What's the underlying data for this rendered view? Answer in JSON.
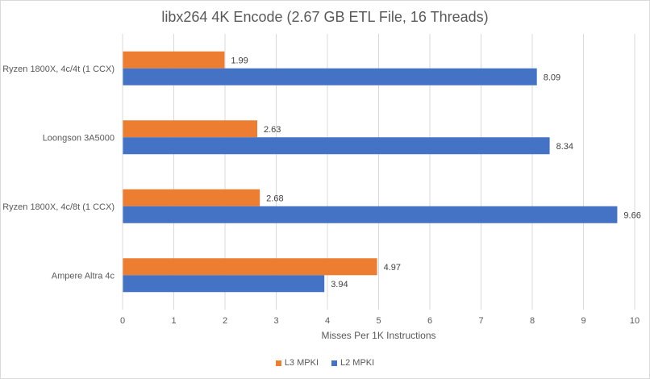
{
  "chart_data": {
    "type": "bar",
    "orientation": "horizontal",
    "title": "libx264 4K Encode (2.67 GB ETL File, 16 Threads)",
    "xlabel": "Misses Per 1K Instructions",
    "ylabel": "",
    "xlim": [
      0,
      10
    ],
    "xticks": [
      0,
      1,
      2,
      3,
      4,
      5,
      6,
      7,
      8,
      9,
      10
    ],
    "grid": true,
    "legend_position": "bottom",
    "categories": [
      "Ryzen 1800X, 4c/4t (1 CCX)",
      "Loongson 3A5000",
      "Ryzen 1800X, 4c/8t (1 CCX)",
      "Ampere Altra 4c"
    ],
    "series": [
      {
        "name": "L3 MPKI",
        "color": "#ed7d31",
        "values": [
          1.99,
          2.63,
          2.68,
          4.97
        ]
      },
      {
        "name": "L2 MPKI",
        "color": "#4472c4",
        "values": [
          8.09,
          8.34,
          9.66,
          3.94
        ]
      }
    ]
  }
}
